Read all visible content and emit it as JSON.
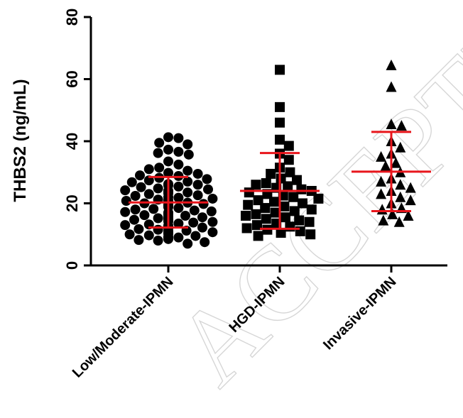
{
  "chart_data": {
    "type": "scatter",
    "title": "",
    "ylabel": "THBS2 (ng/mL)",
    "xlabel": "",
    "ylim": [
      0,
      80
    ],
    "yticks": [
      0,
      20,
      40,
      60,
      80
    ],
    "grid": false,
    "legend": "none",
    "watermark": "ACCEPTED",
    "colors": {
      "points": "#000000",
      "summary": "#e8151b",
      "axis": "#000000"
    },
    "categories": [
      "Low/Moderate-IPMN",
      "HGD-IPMN",
      "Invasive-IPMN"
    ],
    "series": [
      {
        "category": "Low/Moderate-IPMN",
        "marker": "circle",
        "mean": 20.3,
        "sd_low": 12.2,
        "sd_high": 28.5,
        "values": [
          41,
          41.3,
          39.5,
          39,
          37.3,
          36.6,
          36.2,
          35.7,
          33.5,
          32.5,
          31.5,
          31,
          30.5,
          29.8,
          29.5,
          29,
          28.8,
          28.2,
          27.8,
          27.4,
          27,
          26.8,
          26.2,
          26,
          25.8,
          25.4,
          25.2,
          24.8,
          24.5,
          24.2,
          24,
          23.8,
          23.5,
          23.2,
          23,
          22.6,
          22.4,
          22,
          21.8,
          21.5,
          21.2,
          21,
          20.8,
          20.5,
          20.2,
          20,
          19.8,
          19.5,
          19.2,
          19,
          18.8,
          18.5,
          18.2,
          18,
          17.7,
          17.4,
          17.2,
          17,
          16.8,
          16.5,
          16.2,
          16,
          15.7,
          15.5,
          15.2,
          15,
          14.7,
          14.5,
          14.2,
          14,
          13.8,
          13.5,
          13.2,
          13,
          12.8,
          12.5,
          12.2,
          12,
          11.7,
          11.5,
          11.2,
          11,
          10.7,
          10.5,
          10.2,
          10,
          9.7,
          9.5,
          9.2,
          9,
          8.8,
          8.5,
          8.2,
          8,
          7.5,
          7
        ]
      },
      {
        "category": "HGD-IPMN",
        "marker": "square",
        "mean": 24,
        "sd_low": 11.8,
        "sd_high": 36.2,
        "values": [
          63,
          51,
          46,
          40.5,
          38.5,
          36,
          34,
          31.5,
          30,
          29.5,
          28,
          27.5,
          26.5,
          26,
          25.5,
          25,
          24.5,
          24,
          23.5,
          23,
          22.5,
          22,
          21.5,
          21,
          20.5,
          20,
          19.5,
          19,
          18.5,
          18,
          17.5,
          17,
          16.5,
          16,
          15.5,
          15,
          14.5,
          14,
          13.5,
          13,
          12.5,
          12,
          11.5,
          11,
          10.5,
          10,
          9.5
        ]
      },
      {
        "category": "Invasive-IPMN",
        "marker": "triangle",
        "mean": 30.2,
        "sd_low": 17.5,
        "sd_high": 43,
        "values": [
          64.5,
          57.5,
          45.5,
          45,
          40,
          38,
          36,
          35,
          33,
          32,
          30,
          28,
          27,
          26,
          25,
          24,
          23,
          22,
          21,
          20,
          18.5,
          18,
          16.5,
          16,
          14.5,
          14
        ]
      }
    ]
  }
}
